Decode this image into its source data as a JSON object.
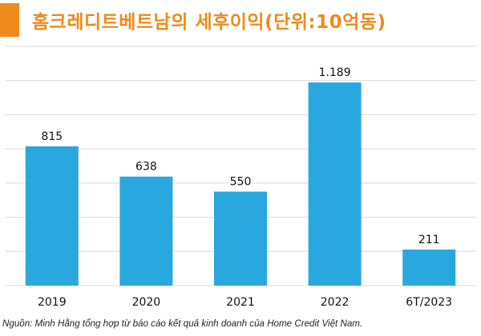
{
  "title": "홈크레디트베트남의  세후이익(단위:10억동)",
  "source": "Nguồn: Minh Hằng tổng hợp từ báo cáo kết quả kinh doanh của Home Credit Việt Nam.",
  "colors": {
    "accent": "#f08a1c",
    "bar": "#29a8e0",
    "grid": "#d9d9d9"
  },
  "chart_data": {
    "type": "bar",
    "categories": [
      "2019",
      "2020",
      "2021",
      "2022",
      "6T/2023"
    ],
    "values": [
      815,
      638,
      550,
      1189,
      211
    ],
    "value_labels": [
      "815",
      "638",
      "550",
      "1.189",
      "211"
    ],
    "ylim": [
      0,
      1400
    ],
    "grid": true,
    "xlabel": "",
    "ylabel": ""
  }
}
